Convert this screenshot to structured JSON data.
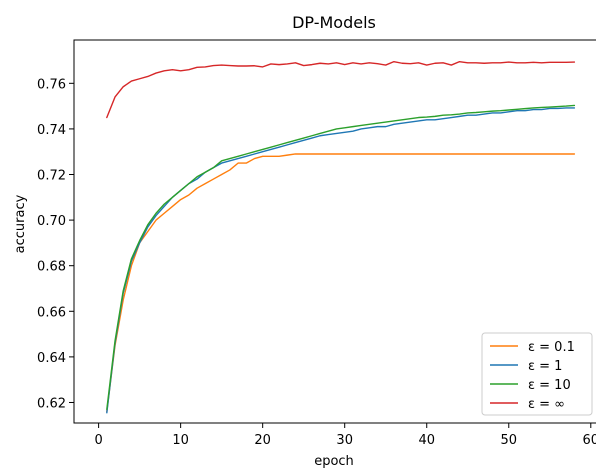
{
  "chart_data": {
    "type": "line",
    "title": "DP-Models",
    "xlabel": "epoch",
    "ylabel": "accuracy",
    "xlim": [
      -3,
      61
    ],
    "ylim": [
      0.611,
      0.779
    ],
    "xticks": [
      0,
      10,
      20,
      30,
      40,
      50,
      60
    ],
    "yticks": [
      0.62,
      0.64,
      0.66,
      0.68,
      0.7,
      0.72,
      0.74,
      0.76
    ],
    "ytick_labels": [
      "0.62",
      "0.64",
      "0.66",
      "0.68",
      "0.70",
      "0.72",
      "0.74",
      "0.76"
    ],
    "xtick_labels": [
      "0",
      "10",
      "20",
      "30",
      "40",
      "50",
      "60"
    ],
    "grid": false,
    "legend_position": "bottom-right",
    "x": [
      1,
      2,
      3,
      4,
      5,
      6,
      7,
      8,
      9,
      10,
      11,
      12,
      13,
      14,
      15,
      16,
      17,
      18,
      19,
      20,
      21,
      22,
      23,
      24,
      25,
      26,
      27,
      28,
      29,
      30,
      31,
      32,
      33,
      34,
      35,
      36,
      37,
      38,
      39,
      40,
      41,
      42,
      43,
      44,
      45,
      46,
      47,
      48,
      49,
      50,
      51,
      52,
      53,
      54,
      55,
      56,
      57,
      58
    ],
    "series": [
      {
        "name": "ε = 0.1",
        "color": "#ff7f0e",
        "values": [
          0.616,
          0.645,
          0.665,
          0.68,
          0.69,
          0.695,
          0.7,
          0.703,
          0.706,
          0.709,
          0.711,
          0.714,
          0.716,
          0.718,
          0.72,
          0.722,
          0.725,
          0.725,
          0.727,
          0.728,
          0.728,
          0.728,
          0.7285,
          0.729,
          0.729,
          0.729,
          0.729,
          0.729,
          0.729,
          0.729,
          0.729,
          0.729,
          0.729,
          0.729,
          0.729,
          0.729,
          0.729,
          0.729,
          0.729,
          0.729,
          0.729,
          0.729,
          0.729,
          0.729,
          0.729,
          0.729,
          0.729,
          0.729,
          0.729,
          0.729,
          0.729,
          0.729,
          0.729,
          0.729,
          0.729,
          0.729,
          0.729,
          0.729
        ]
      },
      {
        "name": "ε = 1",
        "color": "#1f77b4",
        "values": [
          0.6155,
          0.646,
          0.668,
          0.682,
          0.69,
          0.697,
          0.702,
          0.706,
          0.71,
          0.713,
          0.716,
          0.718,
          0.721,
          0.723,
          0.725,
          0.726,
          0.727,
          0.728,
          0.729,
          0.73,
          0.731,
          0.732,
          0.733,
          0.734,
          0.735,
          0.736,
          0.737,
          0.7375,
          0.738,
          0.7385,
          0.739,
          0.74,
          0.7405,
          0.741,
          0.741,
          0.742,
          0.7425,
          0.743,
          0.7435,
          0.744,
          0.744,
          0.7445,
          0.745,
          0.7455,
          0.746,
          0.746,
          0.7465,
          0.747,
          0.747,
          0.7475,
          0.748,
          0.748,
          0.7485,
          0.7485,
          0.749,
          0.749,
          0.7492,
          0.7492
        ]
      },
      {
        "name": "ε = 10",
        "color": "#2ca02c",
        "values": [
          0.617,
          0.647,
          0.669,
          0.683,
          0.691,
          0.698,
          0.703,
          0.707,
          0.71,
          0.713,
          0.716,
          0.719,
          0.721,
          0.723,
          0.726,
          0.727,
          0.728,
          0.729,
          0.73,
          0.731,
          0.732,
          0.733,
          0.734,
          0.735,
          0.736,
          0.737,
          0.738,
          0.739,
          0.74,
          0.7405,
          0.741,
          0.7415,
          0.742,
          0.7425,
          0.743,
          0.7435,
          0.744,
          0.7445,
          0.745,
          0.7452,
          0.7455,
          0.746,
          0.7462,
          0.7465,
          0.747,
          0.7472,
          0.7475,
          0.7478,
          0.748,
          0.7483,
          0.7486,
          0.7489,
          0.7492,
          0.7494,
          0.7496,
          0.7498,
          0.75,
          0.7503
        ]
      },
      {
        "name": "ε = ∞",
        "color": "#d62728",
        "values": [
          0.745,
          0.754,
          0.7585,
          0.761,
          0.762,
          0.763,
          0.7645,
          0.7655,
          0.766,
          0.7655,
          0.766,
          0.767,
          0.7672,
          0.7678,
          0.768,
          0.7678,
          0.7676,
          0.7676,
          0.7677,
          0.7672,
          0.7685,
          0.7682,
          0.7685,
          0.769,
          0.7678,
          0.7682,
          0.7688,
          0.7685,
          0.769,
          0.7682,
          0.769,
          0.7685,
          0.769,
          0.7686,
          0.768,
          0.7695,
          0.7688,
          0.7686,
          0.769,
          0.768,
          0.7688,
          0.769,
          0.768,
          0.7695,
          0.769,
          0.769,
          0.7688,
          0.769,
          0.769,
          0.7693,
          0.769,
          0.769,
          0.7692,
          0.769,
          0.7692,
          0.7692,
          0.7692,
          0.7693
        ]
      }
    ]
  }
}
